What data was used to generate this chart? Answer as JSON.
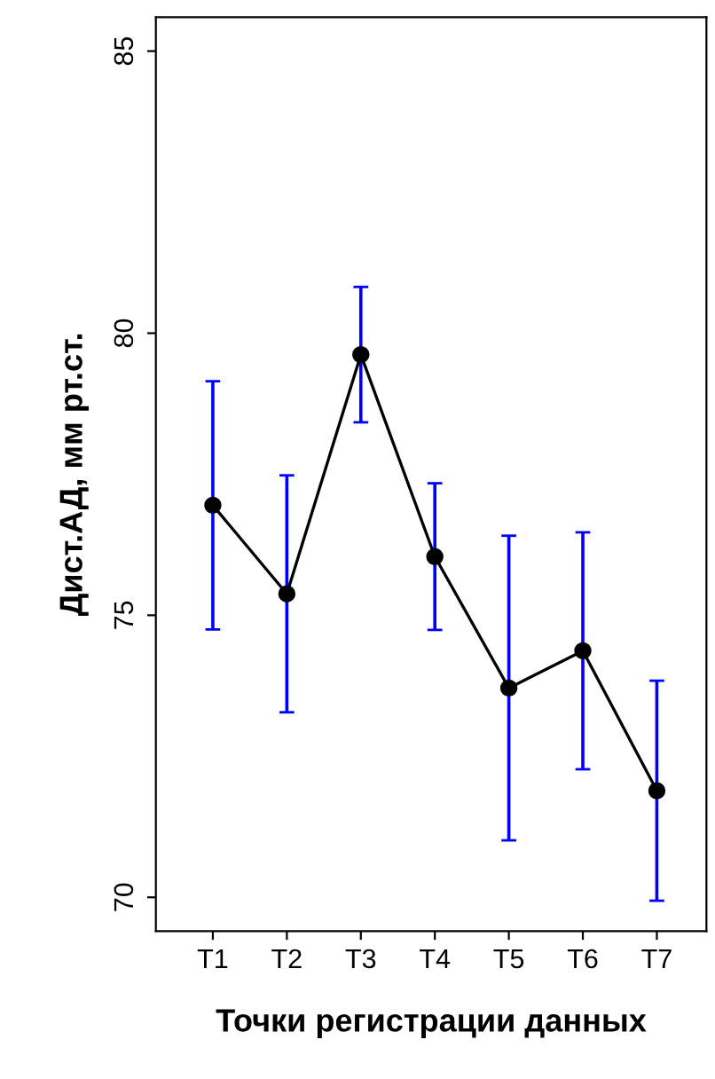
{
  "chart_data": {
    "type": "line",
    "xlabel": "Точки регистрации данных",
    "ylabel": "Дист.АД, мм рт.ст.",
    "categories": [
      "T1",
      "T2",
      "T3",
      "T4",
      "T5",
      "T6",
      "T7"
    ],
    "series": [
      {
        "color": "#000000",
        "values": [
          76.95,
          75.38,
          79.62,
          76.04,
          73.71,
          74.37,
          71.89
        ],
        "errors": [
          2.2,
          2.1,
          1.2,
          1.3,
          2.7,
          2.1,
          1.95
        ]
      }
    ],
    "ylim": [
      69.4,
      85.6
    ],
    "yticks": [
      70,
      75,
      80,
      85
    ],
    "grid": false,
    "marker": "circle",
    "line_style": "solid"
  }
}
